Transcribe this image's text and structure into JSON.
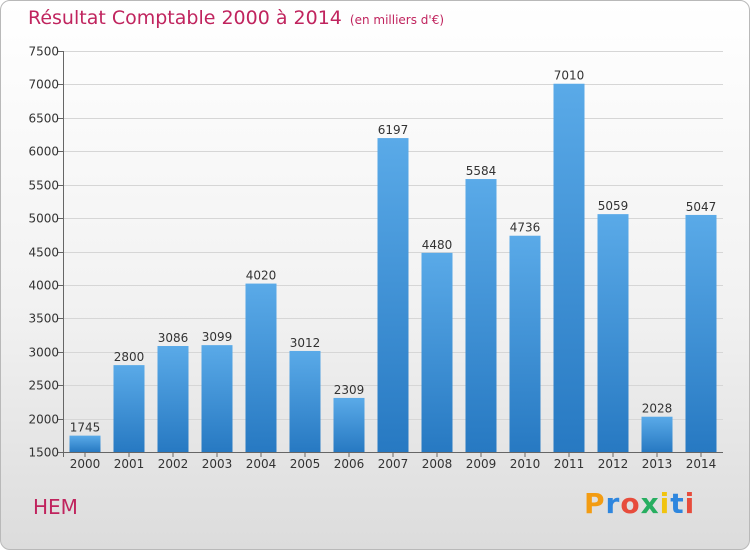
{
  "header": {
    "title": "Résultat Comptable 2000 à 2014",
    "subtitle": "(en milliers d'€)"
  },
  "footer": {
    "place": "HEM",
    "brand": "Proxiti",
    "brand_letters": [
      "P",
      "r",
      "o",
      "x",
      "i",
      "t",
      "i"
    ],
    "brand_colors": [
      "#f39c12",
      "#2e86de",
      "#e74c3c",
      "#27ae60",
      "#f1c40f",
      "#2e86de",
      "#e74c3c"
    ]
  },
  "colors": {
    "bar": "#3a8fd8",
    "bar_light": "#5aaae8",
    "bar_dark": "#2779c2",
    "title": "#c0245e",
    "grid": "#d6d6d6"
  },
  "chart_data": {
    "type": "bar",
    "title": "Résultat Comptable 2000 à 2014",
    "subtitle": "(en milliers d'€)",
    "xlabel": "",
    "ylabel": "",
    "categories": [
      "2000",
      "2001",
      "2002",
      "2003",
      "2004",
      "2005",
      "2006",
      "2007",
      "2008",
      "2009",
      "2010",
      "2011",
      "2012",
      "2013",
      "2014"
    ],
    "values": [
      1745,
      2800,
      3086,
      3099,
      4020,
      3012,
      2309,
      6197,
      4480,
      5584,
      4736,
      7010,
      5059,
      2028,
      5047
    ],
    "ylim": [
      1500,
      7500
    ],
    "yticks": [
      1500,
      2000,
      2500,
      3000,
      3500,
      4000,
      4500,
      5000,
      5500,
      6000,
      6500,
      7000,
      7500
    ],
    "grid": true,
    "legend": "none"
  }
}
